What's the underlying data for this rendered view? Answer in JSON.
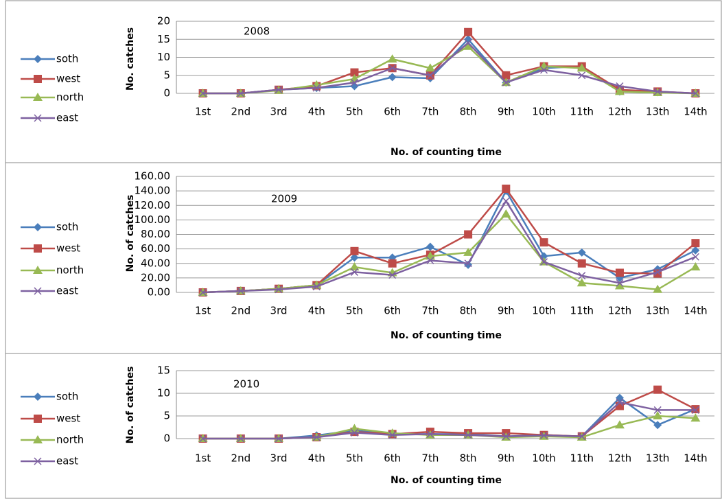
{
  "chart_data": [
    {
      "type": "line",
      "annotation": "2008",
      "y_label": "No. catches",
      "x_label": "No. of counting time",
      "categories": [
        "1st",
        "2nd",
        "3rd",
        "4th",
        "5th",
        "6th",
        "7th",
        "8th",
        "9th",
        "10th",
        "11th",
        "12th",
        "13th",
        "14th"
      ],
      "ylim": [
        0,
        20
      ],
      "yticks": [
        0,
        5,
        10,
        15,
        20
      ],
      "series": [
        {
          "name": "soth",
          "color": "#4a7ebb",
          "values": [
            0,
            0,
            1,
            1.5,
            2,
            4.5,
            4.2,
            15,
            3,
            7,
            7.5,
            0.5,
            0.3,
            0
          ]
        },
        {
          "name": "west",
          "color": "#be4b48",
          "values": [
            0,
            0,
            1,
            2,
            5.8,
            7,
            5,
            17,
            5,
            7.5,
            7.5,
            1,
            0.5,
            0
          ]
        },
        {
          "name": "north",
          "color": "#98b954",
          "values": [
            0,
            0,
            0.8,
            2.3,
            4,
            9.5,
            7,
            13,
            3,
            7.5,
            7,
            0.5,
            0.2,
            0
          ]
        },
        {
          "name": "east",
          "color": "#7d60a0",
          "values": [
            0,
            0,
            1,
            1.5,
            3,
            7,
            5,
            14,
            3,
            6.5,
            5,
            2,
            0.5,
            0
          ]
        }
      ]
    },
    {
      "type": "line",
      "annotation": "2009",
      "y_label": "No. of catches",
      "x_label": "No. of counting time",
      "categories": [
        "1st",
        "2nd",
        "3rd",
        "4th",
        "5th",
        "6th",
        "7th",
        "8th",
        "9th",
        "10th",
        "11th",
        "12th",
        "13th",
        "14th"
      ],
      "ylim": [
        0,
        160
      ],
      "yticks": [
        {
          "value": 0,
          "label": "0.00"
        },
        {
          "value": 20,
          "label": "20.00"
        },
        {
          "value": 40,
          "label": "40.00"
        },
        {
          "value": 60,
          "label": "60.00"
        },
        {
          "value": 80,
          "label": "80.00"
        },
        {
          "value": 100,
          "label": "100.00"
        },
        {
          "value": 120,
          "label": "120.00"
        },
        {
          "value": 140,
          "label": "140.00"
        },
        {
          "value": 160,
          "label": "160.00"
        }
      ],
      "series": [
        {
          "name": "soth",
          "color": "#4a7ebb",
          "values": [
            0,
            2,
            5,
            10,
            48,
            48,
            63,
            38,
            140,
            50,
            55,
            20,
            32,
            58
          ]
        },
        {
          "name": "west",
          "color": "#be4b48",
          "values": [
            0,
            2,
            5,
            10,
            57,
            40,
            52,
            80,
            143,
            69,
            40,
            27,
            26,
            68
          ]
        },
        {
          "name": "north",
          "color": "#98b954",
          "values": [
            0,
            2,
            5,
            10,
            35,
            27,
            50,
            55,
            108,
            42,
            13,
            9,
            4,
            35
          ]
        },
        {
          "name": "east",
          "color": "#7d60a0",
          "values": [
            0,
            2,
            4,
            8,
            28,
            24,
            44,
            40,
            126,
            42,
            23,
            13,
            28,
            49
          ]
        }
      ]
    },
    {
      "type": "line",
      "annotation": "2010",
      "y_label": "No. of catches",
      "x_label": "No. of counting time",
      "categories": [
        "1st",
        "2nd",
        "3rd",
        "4th",
        "5th",
        "6th",
        "7th",
        "8th",
        "9th",
        "10th",
        "11th",
        "12th",
        "13th",
        "14th"
      ],
      "ylim": [
        0,
        15
      ],
      "yticks": [
        0,
        5,
        10,
        15
      ],
      "series": [
        {
          "name": "soth",
          "color": "#4a7ebb",
          "values": [
            0,
            0,
            0,
            0.7,
            1.8,
            1,
            1,
            1,
            0.5,
            0.8,
            0.5,
            9,
            3,
            6.5
          ]
        },
        {
          "name": "west",
          "color": "#be4b48",
          "values": [
            0,
            0,
            0,
            0.3,
            1.5,
            1,
            1.5,
            1.2,
            1.2,
            0.8,
            0.5,
            7.2,
            10.8,
            6.5
          ]
        },
        {
          "name": "north",
          "color": "#98b954",
          "values": [
            0,
            0,
            0,
            0.3,
            2.2,
            1.2,
            0.8,
            0.8,
            0.3,
            0.5,
            0.3,
            3,
            5,
            4.5
          ]
        },
        {
          "name": "east",
          "color": "#7d60a0",
          "values": [
            0,
            0,
            0,
            0.3,
            1.3,
            0.8,
            1,
            0.8,
            0.5,
            0.7,
            0.5,
            8,
            6.3,
            6.3
          ]
        }
      ]
    }
  ]
}
